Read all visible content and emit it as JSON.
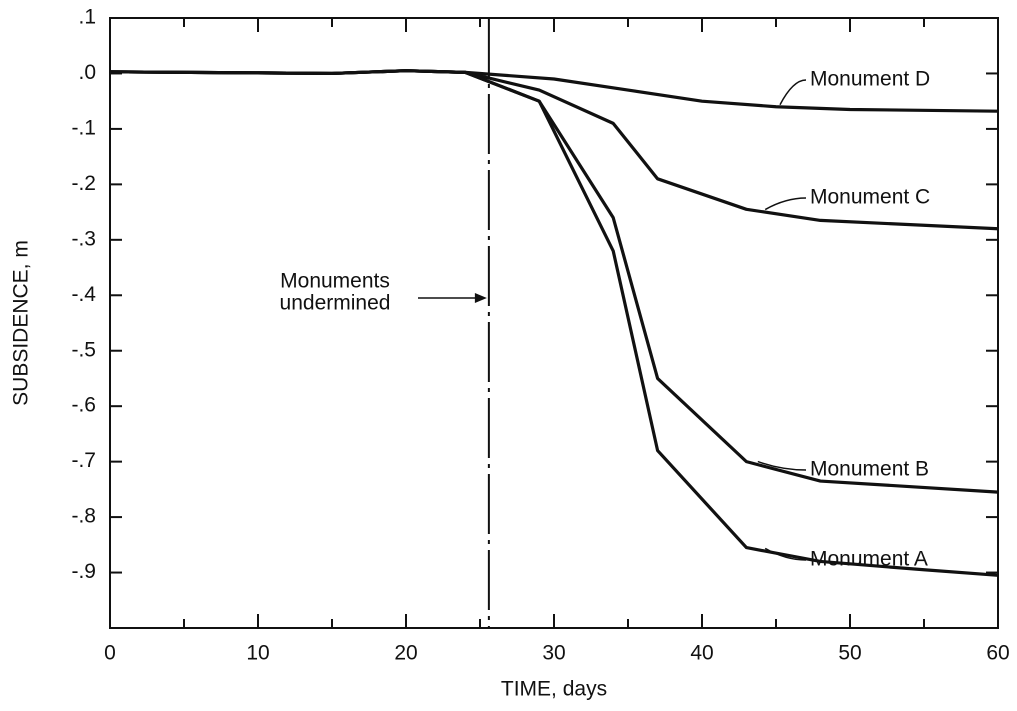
{
  "chart_data": {
    "type": "line",
    "xlabel": "TIME, days",
    "ylabel": "SUBSIDENCE, m",
    "xlim": [
      0,
      60
    ],
    "xticks": [
      0,
      10,
      20,
      30,
      40,
      50,
      60
    ],
    "xminor_ticks": [
      5,
      15,
      25,
      35,
      45,
      55
    ],
    "ylim": [
      -1.0,
      0.1
    ],
    "yticks": [
      {
        "value": 0.1,
        "label": ".1"
      },
      {
        "value": 0,
        "label": ".0"
      },
      {
        "value": -0.1,
        "label": "-.1"
      },
      {
        "value": -0.2,
        "label": "-.2"
      },
      {
        "value": -0.3,
        "label": "-.3"
      },
      {
        "value": -0.4,
        "label": "-.4"
      },
      {
        "value": -0.5,
        "label": "-.5"
      },
      {
        "value": -0.6,
        "label": "-.6"
      },
      {
        "value": -0.7,
        "label": "-.7"
      },
      {
        "value": -0.8,
        "label": "-.8"
      },
      {
        "value": -0.9,
        "label": "-.9"
      }
    ],
    "vline": {
      "x": 25.6,
      "label": [
        "Monuments",
        "undermined"
      ]
    },
    "series": [
      {
        "name": "Monument D",
        "color": "#111111",
        "x": [
          0,
          10,
          15,
          20,
          24,
          30,
          35,
          40,
          45,
          50,
          60
        ],
        "values": [
          0.003,
          0.001,
          0,
          0.005,
          0.002,
          -0.01,
          -0.03,
          -0.05,
          -0.06,
          -0.065,
          -0.068
        ]
      },
      {
        "name": "Monument C",
        "color": "#111111",
        "x": [
          0,
          10,
          15,
          20,
          24,
          29,
          34,
          37,
          43,
          48,
          60
        ],
        "values": [
          0.003,
          0.001,
          0,
          0.005,
          0.002,
          -0.03,
          -0.09,
          -0.19,
          -0.245,
          -0.265,
          -0.28
        ]
      },
      {
        "name": "Monument B",
        "color": "#111111",
        "x": [
          0,
          10,
          15,
          20,
          24,
          29,
          34,
          37,
          43,
          48,
          60
        ],
        "values": [
          0.003,
          0.001,
          0,
          0.005,
          0.002,
          -0.05,
          -0.26,
          -0.55,
          -0.7,
          -0.735,
          -0.755
        ]
      },
      {
        "name": "Monument A",
        "color": "#111111",
        "x": [
          0,
          10,
          15,
          20,
          24,
          29,
          34,
          37,
          43,
          48,
          55,
          60
        ],
        "values": [
          0.003,
          0.001,
          0,
          0.005,
          0.002,
          -0.05,
          -0.32,
          -0.68,
          -0.855,
          -0.88,
          -0.895,
          -0.905
        ]
      }
    ]
  }
}
